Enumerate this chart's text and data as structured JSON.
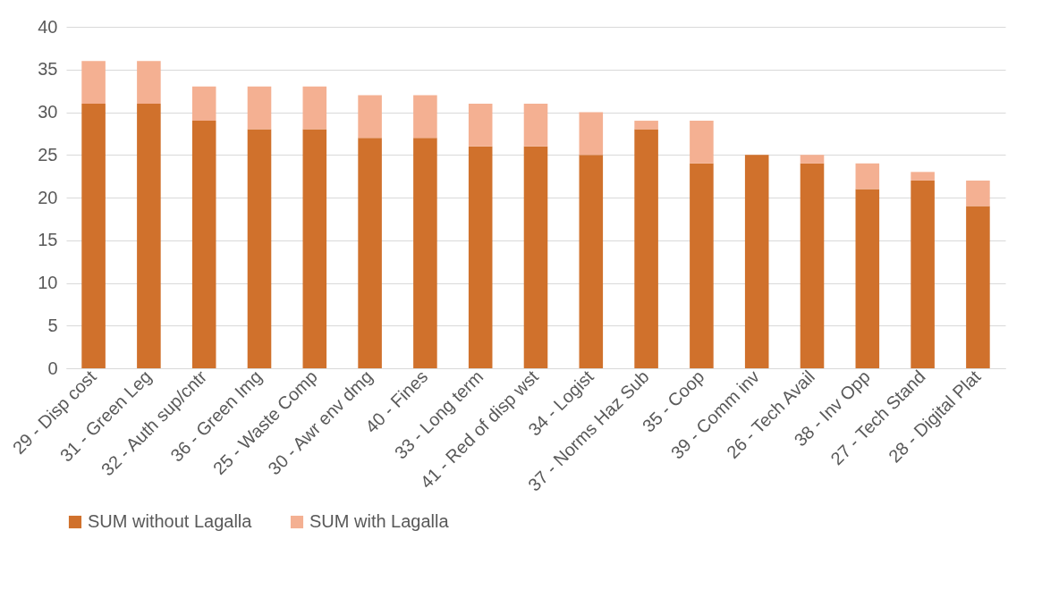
{
  "chart_data": {
    "type": "bar",
    "stacked": true,
    "categories": [
      "29 - Disp cost",
      "31 - Green Leg",
      "32 - Auth sup/cntr",
      "36 - Green Img",
      "25 - Waste Comp",
      "30 - Awr env dmg",
      "40 - Fines",
      "33 - Long term",
      "41 - Red of disp wst",
      "34 - Logist",
      "37 - Norms Haz Sub",
      "35 - Coop",
      "39 - Comm inv",
      "26 - Tech Avail",
      "38 - Inv Opp",
      "27 - Tech Stand",
      "28 - Digital Plat"
    ],
    "series": [
      {
        "name": "SUM without Lagalla",
        "color": "#d0712c",
        "values": [
          31,
          31,
          29,
          28,
          28,
          27,
          27,
          26,
          26,
          25,
          28,
          24,
          25,
          24,
          21,
          22,
          19
        ]
      },
      {
        "name": "SUM with Lagalla",
        "color": "#f4b092",
        "values": [
          5,
          5,
          4,
          5,
          5,
          5,
          5,
          5,
          5,
          5,
          1,
          5,
          0,
          1,
          3,
          1,
          3
        ]
      }
    ],
    "ylim": [
      0,
      40
    ],
    "yticks": [
      0,
      5,
      10,
      15,
      20,
      25,
      30,
      35,
      40
    ],
    "grid": "y",
    "legend": "bottom"
  }
}
